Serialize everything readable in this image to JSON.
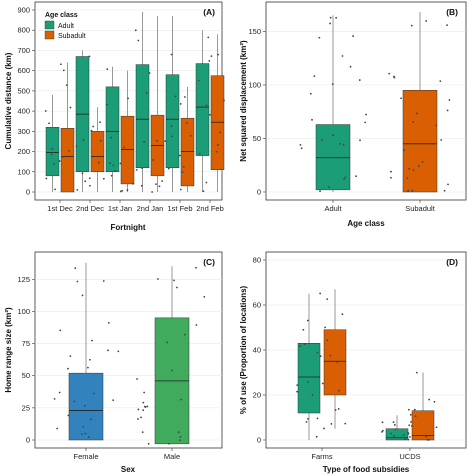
{
  "colors": {
    "adult": "#1b9e77",
    "subadult": "#d95f02",
    "female": "#3182bd",
    "male": "#41ab5d"
  },
  "chart_data": [
    {
      "id": "A",
      "type": "box",
      "panel_label": "(A)",
      "xlabel": "Fortnight",
      "ylabel": "Cumulative distance (km)",
      "ylim": [
        0,
        900
      ],
      "yticks": [
        0,
        100,
        200,
        300,
        400,
        500,
        600,
        700,
        800,
        900
      ],
      "categories": [
        "1st Dec",
        "2nd Dec",
        "1st Jan",
        "2nd Jan",
        "1st Feb",
        "2nd Feb"
      ],
      "legend": {
        "title": "Age class",
        "position": "top-left",
        "items": [
          "Adult",
          "Subadult"
        ]
      },
      "series": [
        {
          "name": "Adult",
          "color": "#1b9e77",
          "boxes": [
            {
              "q1": 80,
              "median": 195,
              "q3": 320,
              "lower": 0,
              "upper": 480
            },
            {
              "q1": 100,
              "median": 385,
              "q3": 670,
              "lower": 0,
              "upper": 700
            },
            {
              "q1": 100,
              "median": 300,
              "q3": 520,
              "lower": 0,
              "upper": 620
            },
            {
              "q1": 120,
              "median": 360,
              "q3": 630,
              "lower": 0,
              "upper": 890
            },
            {
              "q1": 120,
              "median": 360,
              "q3": 580,
              "lower": 0,
              "upper": 870
            },
            {
              "q1": 180,
              "median": 420,
              "q3": 635,
              "lower": 0,
              "upper": 800
            }
          ]
        },
        {
          "name": "Subadult",
          "color": "#d95f02",
          "boxes": [
            {
              "q1": 0,
              "median": 175,
              "q3": 315,
              "lower": 0,
              "upper": 640
            },
            {
              "q1": 100,
              "median": 175,
              "q3": 300,
              "lower": 0,
              "upper": 420
            },
            {
              "q1": 40,
              "median": 210,
              "q3": 375,
              "lower": 0,
              "upper": 600
            },
            {
              "q1": 80,
              "median": 230,
              "q3": 380,
              "lower": 0,
              "upper": 870
            },
            {
              "q1": 30,
              "median": 200,
              "q3": 365,
              "lower": 0,
              "upper": 520
            },
            {
              "q1": 110,
              "median": 345,
              "q3": 575,
              "lower": 0,
              "upper": 780
            }
          ]
        }
      ]
    },
    {
      "id": "B",
      "type": "box",
      "panel_label": "(B)",
      "xlabel": "Age class",
      "ylabel": "Net squared displacement (km²)",
      "ylim": [
        0,
        170
      ],
      "yticks": [
        0,
        50,
        100,
        150
      ],
      "categories": [
        "Adult",
        "Subadult"
      ],
      "series": [
        {
          "name": "Adult",
          "color": "#1b9e77",
          "boxes": [
            {
              "q1": 2,
              "median": 32,
              "q3": 63,
              "lower": 0,
              "upper": 165
            }
          ]
        },
        {
          "name": "Subadult",
          "color": "#d95f02",
          "boxes": [
            {
              "q1": 0,
              "median": 45,
              "q3": 95,
              "lower": 0,
              "upper": 168
            }
          ]
        }
      ]
    },
    {
      "id": "C",
      "type": "box",
      "panel_label": "(C)",
      "xlabel": "Sex",
      "ylabel": "Home range size (km²)",
      "ylim": [
        0,
        140
      ],
      "yticks": [
        0,
        25,
        50,
        75,
        100,
        125
      ],
      "categories": [
        "Female",
        "Male"
      ],
      "series": [
        {
          "name": "Female",
          "color": "#3182bd",
          "boxes": [
            {
              "q1": 0,
              "median": 23,
              "q3": 52,
              "lower": 0,
              "upper": 138
            }
          ]
        },
        {
          "name": "Male",
          "color": "#41ab5d",
          "boxes": [
            {
              "q1": -3,
              "median": 46,
              "q3": 95,
              "lower": -3,
              "upper": 135
            }
          ]
        }
      ]
    },
    {
      "id": "D",
      "type": "box",
      "panel_label": "(D)",
      "xlabel": "Type of food subsidies",
      "ylabel": "% of use (Proportion of locations)",
      "ylim": [
        0,
        80
      ],
      "yticks": [
        0,
        20,
        40,
        60,
        80
      ],
      "categories": [
        "Farms",
        "UCDS"
      ],
      "series": [
        {
          "name": "Adult",
          "color": "#1b9e77",
          "boxes": [
            {
              "q1": 12,
              "median": 28,
              "q3": 43,
              "lower": 0,
              "upper": 65
            },
            {
              "q1": 0,
              "median": 1,
              "q3": 5,
              "lower": 0,
              "upper": 11
            }
          ]
        },
        {
          "name": "Subadult",
          "color": "#d95f02",
          "boxes": [
            {
              "q1": 20,
              "median": 35,
              "q3": 49,
              "lower": 5,
              "upper": 67
            },
            {
              "q1": 0,
              "median": 2,
              "q3": 13,
              "lower": 0,
              "upper": 30
            }
          ]
        }
      ]
    }
  ]
}
